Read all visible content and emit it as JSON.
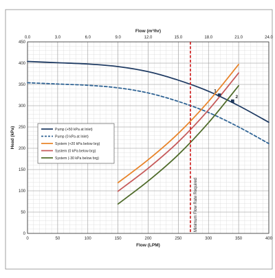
{
  "chart_data": {
    "type": "line",
    "x": {
      "label": "Flow (LPM)",
      "min": 0,
      "max": 400,
      "ticks": [
        0,
        50,
        100,
        150,
        200,
        250,
        300,
        350,
        400
      ],
      "tick_labels": [
        "0",
        "50",
        "100",
        "150",
        "200",
        "250",
        "300",
        "350",
        "400"
      ]
    },
    "x2": {
      "label": "Flow (m³/hr)",
      "min": 0,
      "max": 24,
      "ticks": [
        0,
        3,
        6,
        9,
        12,
        15,
        18,
        21,
        24
      ],
      "tick_labels": [
        "0.0",
        "3.0",
        "6.0",
        "9.0",
        "12.0",
        "15.0",
        "18.0",
        "21.0",
        "24.0"
      ]
    },
    "y": {
      "label": "Head (kPa)",
      "min": 0,
      "max": 450,
      "ticks": [
        0,
        50,
        100,
        150,
        200,
        250,
        300,
        350,
        400,
        450
      ],
      "tick_labels": [
        "0",
        "50",
        "100",
        "150",
        "200",
        "250",
        "300",
        "350",
        "400",
        "450"
      ]
    },
    "grid": true,
    "legend_position": "left-middle",
    "series": [
      {
        "name": "Pump (+50 kPa at Inlet)",
        "color": "#1f3b63",
        "dash": "solid",
        "points": [
          [
            0,
            404
          ],
          [
            50,
            401
          ],
          [
            100,
            398
          ],
          [
            150,
            392
          ],
          [
            200,
            380
          ],
          [
            250,
            360
          ],
          [
            300,
            334
          ],
          [
            350,
            300
          ],
          [
            400,
            261
          ]
        ]
      },
      {
        "name": "Pump (0 kPa at Inlet)",
        "color": "#2f6394",
        "dash": "dashed",
        "points": [
          [
            0,
            354
          ],
          [
            50,
            351
          ],
          [
            100,
            348
          ],
          [
            150,
            342
          ],
          [
            200,
            330
          ],
          [
            250,
            310
          ],
          [
            300,
            284
          ],
          [
            350,
            250
          ],
          [
            400,
            211
          ]
        ]
      },
      {
        "name": "System (+20 kPa below brg)",
        "color": "#e8842a",
        "dash": "solid",
        "points": [
          [
            150,
            119
          ],
          [
            200,
            173
          ],
          [
            250,
            235
          ],
          [
            300,
            310
          ],
          [
            350,
            397
          ]
        ]
      },
      {
        "name": "System (0 kPa below brg)",
        "color": "#c65a5a",
        "dash": "solid",
        "points": [
          [
            150,
            99
          ],
          [
            200,
            153
          ],
          [
            250,
            215
          ],
          [
            300,
            290
          ],
          [
            350,
            377
          ]
        ]
      },
      {
        "name": "System (-30 kPa below brg)",
        "color": "#4f6b2a",
        "dash": "solid",
        "points": [
          [
            150,
            69
          ],
          [
            200,
            123
          ],
          [
            250,
            185
          ],
          [
            300,
            260
          ],
          [
            350,
            347
          ]
        ]
      }
    ],
    "vline": {
      "x": 270,
      "color": "#cc1111",
      "label": "Minimum Flow Rate Required"
    },
    "markers": [
      {
        "label": "1",
        "x": 318,
        "y": 325
      },
      {
        "label": "2",
        "x": 340,
        "y": 311
      }
    ]
  }
}
